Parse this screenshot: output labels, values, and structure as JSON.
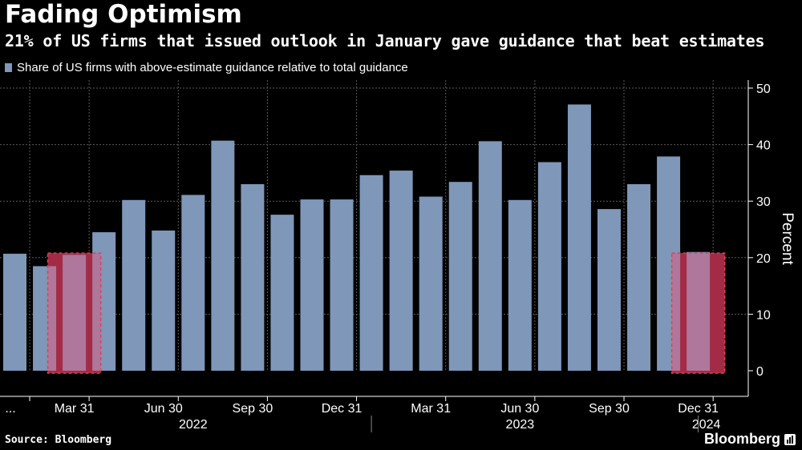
{
  "header": {
    "title": "Fading Optimism",
    "subtitle": "21% of US firms that issued outlook in January gave guidance that beat estimates"
  },
  "legend": {
    "label": "Share of US firms with above-estimate guidance relative to total guidance",
    "color": "#7f97b8"
  },
  "footer": {
    "source": "Source: Bloomberg",
    "brand": "Bloomberg",
    "brand_icon": "bar-chart-icon"
  },
  "colors": {
    "bar": "#7f97b8",
    "highlight_fill": "#6b0d1c",
    "highlight_stroke": "#e0405a",
    "highlight_overlay": "rgba(232,80,120,0.45)",
    "grid": "#5a5a5a",
    "background": "#000000"
  },
  "chart_data": {
    "type": "bar",
    "ylabel": "Percent",
    "ylim": [
      0,
      50
    ],
    "y_ticks": [
      0,
      10,
      20,
      30,
      40,
      50
    ],
    "grid": true,
    "axis_side": "right",
    "values": [
      20.7,
      18.5,
      20.5,
      24.5,
      30.2,
      24.8,
      31.1,
      40.7,
      33.0,
      27.6,
      30.3,
      30.3,
      34.6,
      35.4,
      30.8,
      33.4,
      40.6,
      30.2,
      36.9,
      47.1,
      28.6,
      33.0,
      37.9,
      21.0
    ],
    "x_tick_labels": [
      {
        "label": "...",
        "index": 0
      },
      {
        "label": "Mar 31",
        "index": 2
      },
      {
        "label": "Jun 30",
        "index": 5
      },
      {
        "label": "Sep 30",
        "index": 8
      },
      {
        "label": "Dec 31",
        "index": 11
      },
      {
        "label": "Mar 31",
        "index": 14
      },
      {
        "label": "Jun 30",
        "index": 17
      },
      {
        "label": "Sep 30",
        "index": 20
      },
      {
        "label": "Dec 31",
        "index": 23
      }
    ],
    "year_labels": [
      {
        "label": "2022",
        "from": 1,
        "to": 11
      },
      {
        "label": "2023",
        "from": 12,
        "to": 22
      },
      {
        "label": "2024",
        "from": 23,
        "to": 23
      }
    ],
    "highlights": [
      {
        "from": 1.5,
        "to": 3.5
      },
      {
        "from": 22.5,
        "to": 24.5
      }
    ]
  }
}
